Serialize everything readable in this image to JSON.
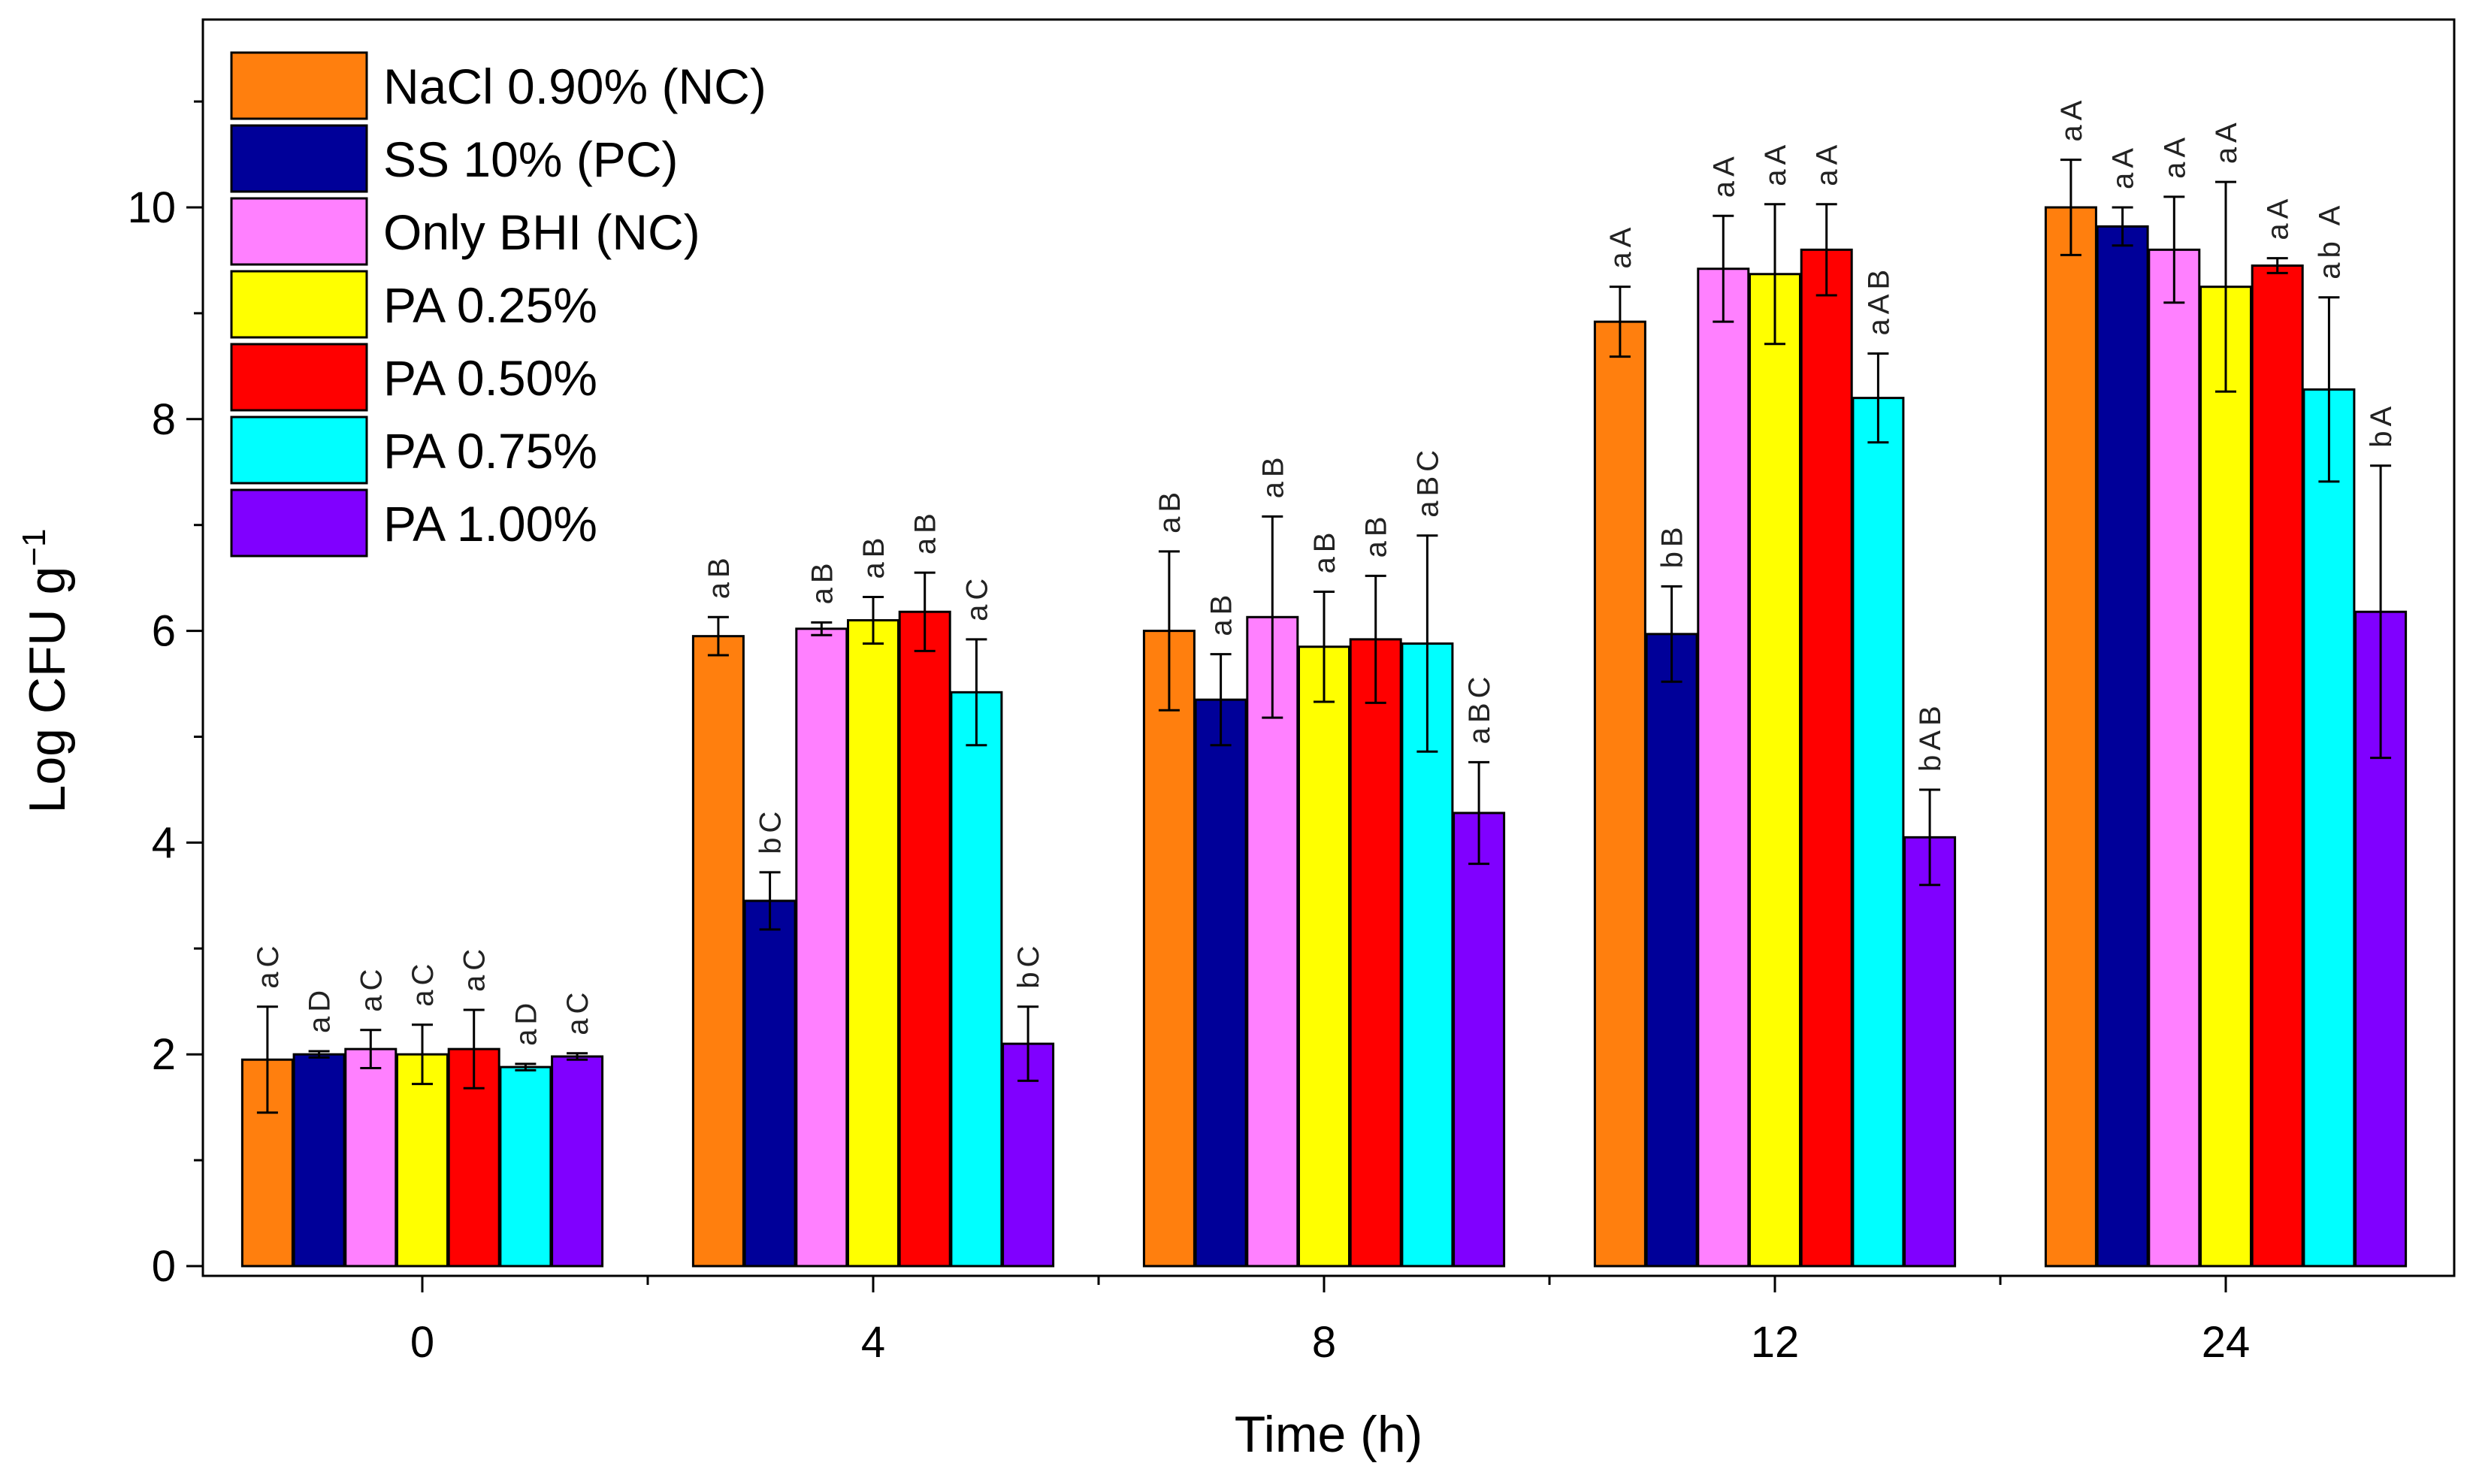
{
  "chart_data": {
    "type": "bar",
    "title": "",
    "xlabel": "Time (h)",
    "ylabel": "Log CFU g",
    "ylabel_superscript": "−1",
    "ylim": [
      0,
      11.6
    ],
    "yticks": [
      "0",
      "2",
      "4",
      "6",
      "8",
      "10"
    ],
    "categories": [
      "0",
      "4",
      "8",
      "12",
      "24"
    ],
    "legend_position": "top-left",
    "series": [
      {
        "name": "NaCl 0.90% (NC)",
        "color": "#ff7f0e",
        "values": [
          1.95,
          5.95,
          6.0,
          8.92,
          10.0
        ],
        "errors": [
          0.5,
          0.18,
          0.75,
          0.33,
          0.45
        ],
        "labels": [
          "aC",
          "aB",
          "aB",
          "aA",
          "aA"
        ]
      },
      {
        "name": "SS 10% (PC)",
        "color": "#000099",
        "values": [
          2.0,
          3.45,
          5.35,
          5.97,
          9.82
        ],
        "errors": [
          0.03,
          0.27,
          0.43,
          0.45,
          0.18
        ],
        "labels": [
          "aD",
          "bC",
          "aB",
          "bB",
          "aA"
        ]
      },
      {
        "name": "Only BHI (NC)",
        "color": "#ff80ff",
        "values": [
          2.05,
          6.02,
          6.13,
          9.42,
          9.6
        ],
        "errors": [
          0.18,
          0.06,
          0.95,
          0.5,
          0.5
        ],
        "labels": [
          "aC",
          "aB",
          "aB",
          "aA",
          "aA"
        ]
      },
      {
        "name": "PA 0.25%",
        "color": "#ffff00",
        "values": [
          2.0,
          6.1,
          5.85,
          9.37,
          9.25
        ],
        "errors": [
          0.28,
          0.22,
          0.52,
          0.66,
          0.99
        ],
        "labels": [
          "aC",
          "aB",
          "aB",
          "aA",
          "aA"
        ]
      },
      {
        "name": "PA 0.50%",
        "color": "#ff0000",
        "values": [
          2.05,
          6.18,
          5.92,
          9.6,
          9.45
        ],
        "errors": [
          0.37,
          0.37,
          0.6,
          0.43,
          0.07
        ],
        "labels": [
          "aC",
          "aB",
          "aB",
          "aA",
          "aA"
        ]
      },
      {
        "name": "PA 0.75%",
        "color": "#00ffff",
        "values": [
          1.88,
          5.42,
          5.88,
          8.2,
          8.28
        ],
        "errors": [
          0.03,
          0.5,
          1.02,
          0.42,
          0.87
        ],
        "labels": [
          "aD",
          "aC",
          "aBC",
          "aAB",
          "ab A"
        ]
      },
      {
        "name": "PA 1.00%",
        "color": "#8000ff",
        "values": [
          1.98,
          2.1,
          4.28,
          4.05,
          6.18
        ],
        "errors": [
          0.03,
          0.35,
          0.48,
          0.45,
          1.38
        ],
        "labels": [
          "aC",
          "bC",
          "aBC",
          "bAB",
          "bA"
        ]
      }
    ]
  }
}
